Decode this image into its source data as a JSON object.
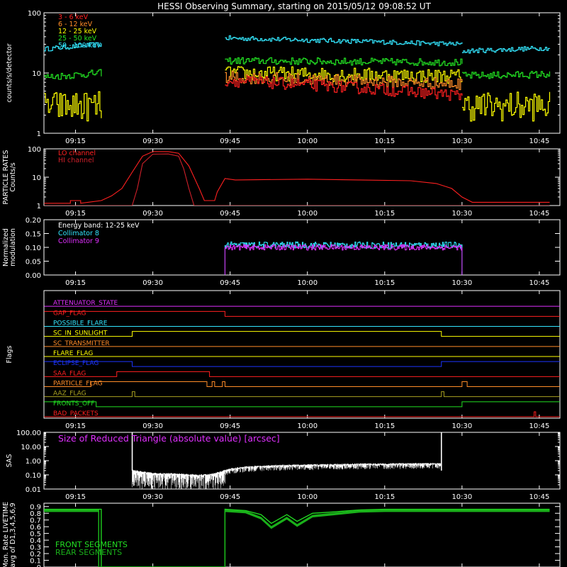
{
  "title": "HESSI Observing Summary, starting on 2015/05/12 09:08:52 UT",
  "time_axis": {
    "ticks": [
      "09:15",
      "09:30",
      "09:45",
      "10:00",
      "10:15",
      "10:30",
      "10:45"
    ],
    "tick_minutes": [
      15,
      30,
      45,
      60,
      75,
      90,
      105
    ],
    "range_minutes": [
      8.87,
      109.0
    ]
  },
  "colors": {
    "red": "#ff2020",
    "orange": "#ff8c28",
    "yellow": "#ffff00",
    "green": "#22e022",
    "cyan": "#33e6ff",
    "magenta": "#e030ff",
    "white": "#ffffff",
    "blue": "#1d35ff",
    "olive": "#a8a020",
    "darkgreen": "#1ab01a",
    "darkred": "#d0202a"
  },
  "chart_data": [
    {
      "type": "line",
      "id": "rates",
      "ylabel": "counts/s/detector",
      "yscale": "log",
      "ylim": [
        1,
        100
      ],
      "yticks": [
        "1",
        "10",
        "100"
      ],
      "series": [
        {
          "name": "3 - 6 keV",
          "color": "red",
          "segments": [
            {
              "x": [
                44,
                90
              ],
              "y": [
                7.5,
                4.2
              ],
              "noise": 0.1
            }
          ]
        },
        {
          "name": "6 - 12 keV",
          "color": "orange",
          "segments": [
            {
              "x": [
                44,
                90
              ],
              "y": [
                8.5,
                6.5
              ],
              "noise": 0.1
            }
          ]
        },
        {
          "name": "12 - 25 keV",
          "color": "yellow",
          "segments": [
            {
              "x": [
                8.9,
                20
              ],
              "y": [
                2.8,
                2.8
              ],
              "noise": 0.25
            },
            {
              "x": [
                44,
                90
              ],
              "y": [
                10,
                8.8
              ],
              "noise": 0.12
            },
            {
              "x": [
                90,
                107
              ],
              "y": [
                2.8,
                2.8
              ],
              "noise": 0.25
            }
          ]
        },
        {
          "name": "25 - 50 keV",
          "color": "green",
          "segments": [
            {
              "x": [
                8.9,
                20
              ],
              "y": [
                8.5,
                10
              ],
              "noise": 0.06
            },
            {
              "x": [
                44,
                90
              ],
              "y": [
                16,
                15
              ],
              "noise": 0.06
            },
            {
              "x": [
                90,
                107
              ],
              "y": [
                9,
                9.5
              ],
              "noise": 0.06
            }
          ]
        },
        {
          "name": "50 - 100 keV",
          "color": "cyan",
          "segments": [
            {
              "x": [
                8.9,
                20
              ],
              "y": [
                25,
                30
              ],
              "noise": 0.04
            },
            {
              "x": [
                44,
                90
              ],
              "y": [
                38,
                30
              ],
              "noise": 0.04
            },
            {
              "x": [
                90,
                107
              ],
              "y": [
                23,
                26
              ],
              "noise": 0.04
            }
          ]
        }
      ]
    },
    {
      "type": "line",
      "id": "particle",
      "ylabel_lines": [
        "PARTICLE RATES",
        "Counts/s"
      ],
      "yscale": "log",
      "ylim": [
        1,
        100
      ],
      "yticks": [
        "1",
        "10",
        "100"
      ],
      "series": [
        {
          "name": "LO channel",
          "color": "red",
          "points": [
            [
              8.9,
              1.2
            ],
            [
              14,
              1.2
            ],
            [
              14,
              1.5
            ],
            [
              16,
              1.5
            ],
            [
              16,
              1.2
            ],
            [
              20,
              1.5
            ],
            [
              22,
              2.2
            ],
            [
              24,
              4
            ],
            [
              26,
              15
            ],
            [
              28,
              55
            ],
            [
              30,
              80
            ],
            [
              33,
              80
            ],
            [
              35,
              70
            ],
            [
              37,
              25
            ],
            [
              39,
              4
            ],
            [
              40,
              1.5
            ],
            [
              42,
              1.5
            ],
            [
              42.5,
              3
            ],
            [
              44,
              9
            ],
            [
              46,
              8
            ],
            [
              60,
              8.5
            ],
            [
              70,
              8
            ],
            [
              80,
              7.5
            ],
            [
              85,
              6
            ],
            [
              88,
              4
            ],
            [
              90,
              2
            ],
            [
              92,
              1.3
            ],
            [
              107,
              1.3
            ]
          ]
        },
        {
          "name": "HI channel",
          "color": "darkred",
          "points": [
            [
              8.9,
              1
            ],
            [
              26,
              1
            ],
            [
              27,
              4
            ],
            [
              28,
              30
            ],
            [
              30,
              65
            ],
            [
              33,
              66
            ],
            [
              35,
              55
            ],
            [
              36,
              20
            ],
            [
              37,
              4
            ],
            [
              38,
              1
            ],
            [
              107,
              1
            ]
          ]
        }
      ]
    },
    {
      "type": "line",
      "id": "modulation",
      "ylabel_lines": [
        "Normalized",
        "modulation"
      ],
      "annotation": "Energy band: 12-25 keV",
      "ylim": [
        0,
        0.2
      ],
      "yticks": [
        "0.00",
        "0.05",
        "0.10",
        "0.15",
        "0.20"
      ],
      "series": [
        {
          "name": "Collimator 8",
          "color": "cyan",
          "x": [
            44,
            90
          ],
          "y": 0.108,
          "noise": 0.012
        },
        {
          "name": "Collimator 9",
          "color": "magenta",
          "x": [
            44,
            90
          ],
          "y": 0.1,
          "noise": 0.01
        }
      ]
    },
    {
      "type": "line",
      "id": "flags",
      "ylabel": "Flags",
      "series": [
        {
          "name": "ATTENUATOR_STATE",
          "color": "magenta",
          "state": [
            [
              8.9,
              0
            ]
          ]
        },
        {
          "name": "GAP_FLAG",
          "color": "red",
          "state": [
            [
              8.9,
              1
            ],
            [
              44,
              0
            ]
          ]
        },
        {
          "name": "POSSIBLE_FLARE",
          "color": "cyan",
          "state": [
            [
              8.9,
              0
            ]
          ]
        },
        {
          "name": "SC_IN_SUNLIGHT",
          "color": "yellow",
          "state": [
            [
              8.9,
              0
            ],
            [
              26,
              1
            ],
            [
              86,
              0
            ]
          ]
        },
        {
          "name": "SC_TRANSMITTER",
          "color": "orange",
          "state": [
            [
              8.9,
              0
            ]
          ]
        },
        {
          "name": "FLARE_FLAG",
          "color": "yellow",
          "state": [
            [
              8.9,
              0
            ]
          ]
        },
        {
          "name": "ECLIPSE_FLAG",
          "color": "blue",
          "state": [
            [
              8.9,
              1
            ],
            [
              26,
              0
            ],
            [
              86,
              1
            ]
          ]
        },
        {
          "name": "SAA_FLAG",
          "color": "red",
          "state": [
            [
              8.9,
              0
            ],
            [
              23,
              1
            ],
            [
              41,
              0
            ]
          ]
        },
        {
          "name": "PARTICLE_FLAG",
          "color": "orange",
          "state": [
            [
              8.9,
              0
            ],
            [
              18,
              1
            ],
            [
              40.5,
              0
            ],
            [
              41.5,
              1
            ],
            [
              42,
              0
            ],
            [
              43.5,
              1
            ],
            [
              44,
              0
            ],
            [
              90,
              1
            ],
            [
              91,
              0
            ]
          ]
        },
        {
          "name": "AAZ_FLAG",
          "color": "olive",
          "state": [
            [
              8.9,
              0
            ],
            [
              26,
              1
            ],
            [
              26.5,
              0
            ],
            [
              86,
              1
            ],
            [
              86.5,
              0
            ]
          ]
        },
        {
          "name": "FRONTS_OFF",
          "color": "green",
          "state": [
            [
              8.9,
              1
            ],
            [
              19,
              0
            ],
            [
              90,
              1
            ]
          ]
        },
        {
          "name": "BAD_PACKETS",
          "color": "red",
          "state": [
            [
              8.9,
              0
            ],
            [
              104,
              1
            ],
            [
              104.3,
              0
            ]
          ]
        }
      ]
    },
    {
      "type": "line",
      "id": "sas",
      "ylabel": "SAS",
      "series_label": "Size of Reduced Triangle (absolute value) [arcsec]",
      "yscale": "log",
      "ylim": [
        0.01,
        100
      ],
      "yticks": [
        "0.01",
        "0.10",
        "1.00",
        "10.00",
        "100.00"
      ],
      "series": [
        {
          "name": "Size of Reduced Triangle (absolute value) [arcsec]",
          "color": "white",
          "points": [
            [
              26,
              0.2
            ],
            [
              30,
              0.12
            ],
            [
              35,
              0.11
            ],
            [
              39,
              0.09
            ],
            [
              41,
              0.1
            ],
            [
              43,
              0.15
            ],
            [
              45,
              0.25
            ],
            [
              48,
              0.35
            ],
            [
              55,
              0.45
            ],
            [
              70,
              0.55
            ],
            [
              86,
              0.6
            ]
          ],
          "spikes_at": [
            26,
            86
          ]
        }
      ]
    },
    {
      "type": "line",
      "id": "livetime",
      "ylabel_lines": [
        "Mon. Rate LIVETIME",
        "avg of D1,3,4,5,6,9"
      ],
      "ylim": [
        0,
        0.95
      ],
      "yticks": [
        "0",
        "0.1",
        "0.2",
        "0.3",
        "0.4",
        "0.5",
        "0.6",
        "0.7",
        "0.8",
        "0.9"
      ],
      "series": [
        {
          "name": "FRONT SEGMENTS",
          "color": "green",
          "points": [
            [
              8.9,
              0.86
            ],
            [
              20,
              0.86
            ],
            [
              20,
              0
            ],
            [
              44,
              0
            ],
            [
              44,
              0.86
            ],
            [
              48,
              0.84
            ],
            [
              51,
              0.78
            ],
            [
              53,
              0.65
            ],
            [
              56,
              0.78
            ],
            [
              58,
              0.68
            ],
            [
              61,
              0.8
            ],
            [
              65,
              0.82
            ],
            [
              70,
              0.85
            ],
            [
              75,
              0.86
            ],
            [
              107,
              0.86
            ]
          ]
        },
        {
          "name": "REAR SEGMENTS",
          "color": "darkgreen",
          "points": [
            [
              8.9,
              0.85
            ],
            [
              19.5,
              0.85
            ],
            [
              19.5,
              0
            ],
            [
              44,
              0
            ],
            [
              44,
              0.85
            ],
            [
              48,
              0.83
            ],
            [
              51,
              0.74
            ],
            [
              53,
              0.6
            ],
            [
              56,
              0.74
            ],
            [
              58,
              0.63
            ],
            [
              61,
              0.77
            ],
            [
              65,
              0.8
            ],
            [
              70,
              0.84
            ],
            [
              75,
              0.85
            ],
            [
              107,
              0.85
            ]
          ]
        }
      ]
    }
  ]
}
